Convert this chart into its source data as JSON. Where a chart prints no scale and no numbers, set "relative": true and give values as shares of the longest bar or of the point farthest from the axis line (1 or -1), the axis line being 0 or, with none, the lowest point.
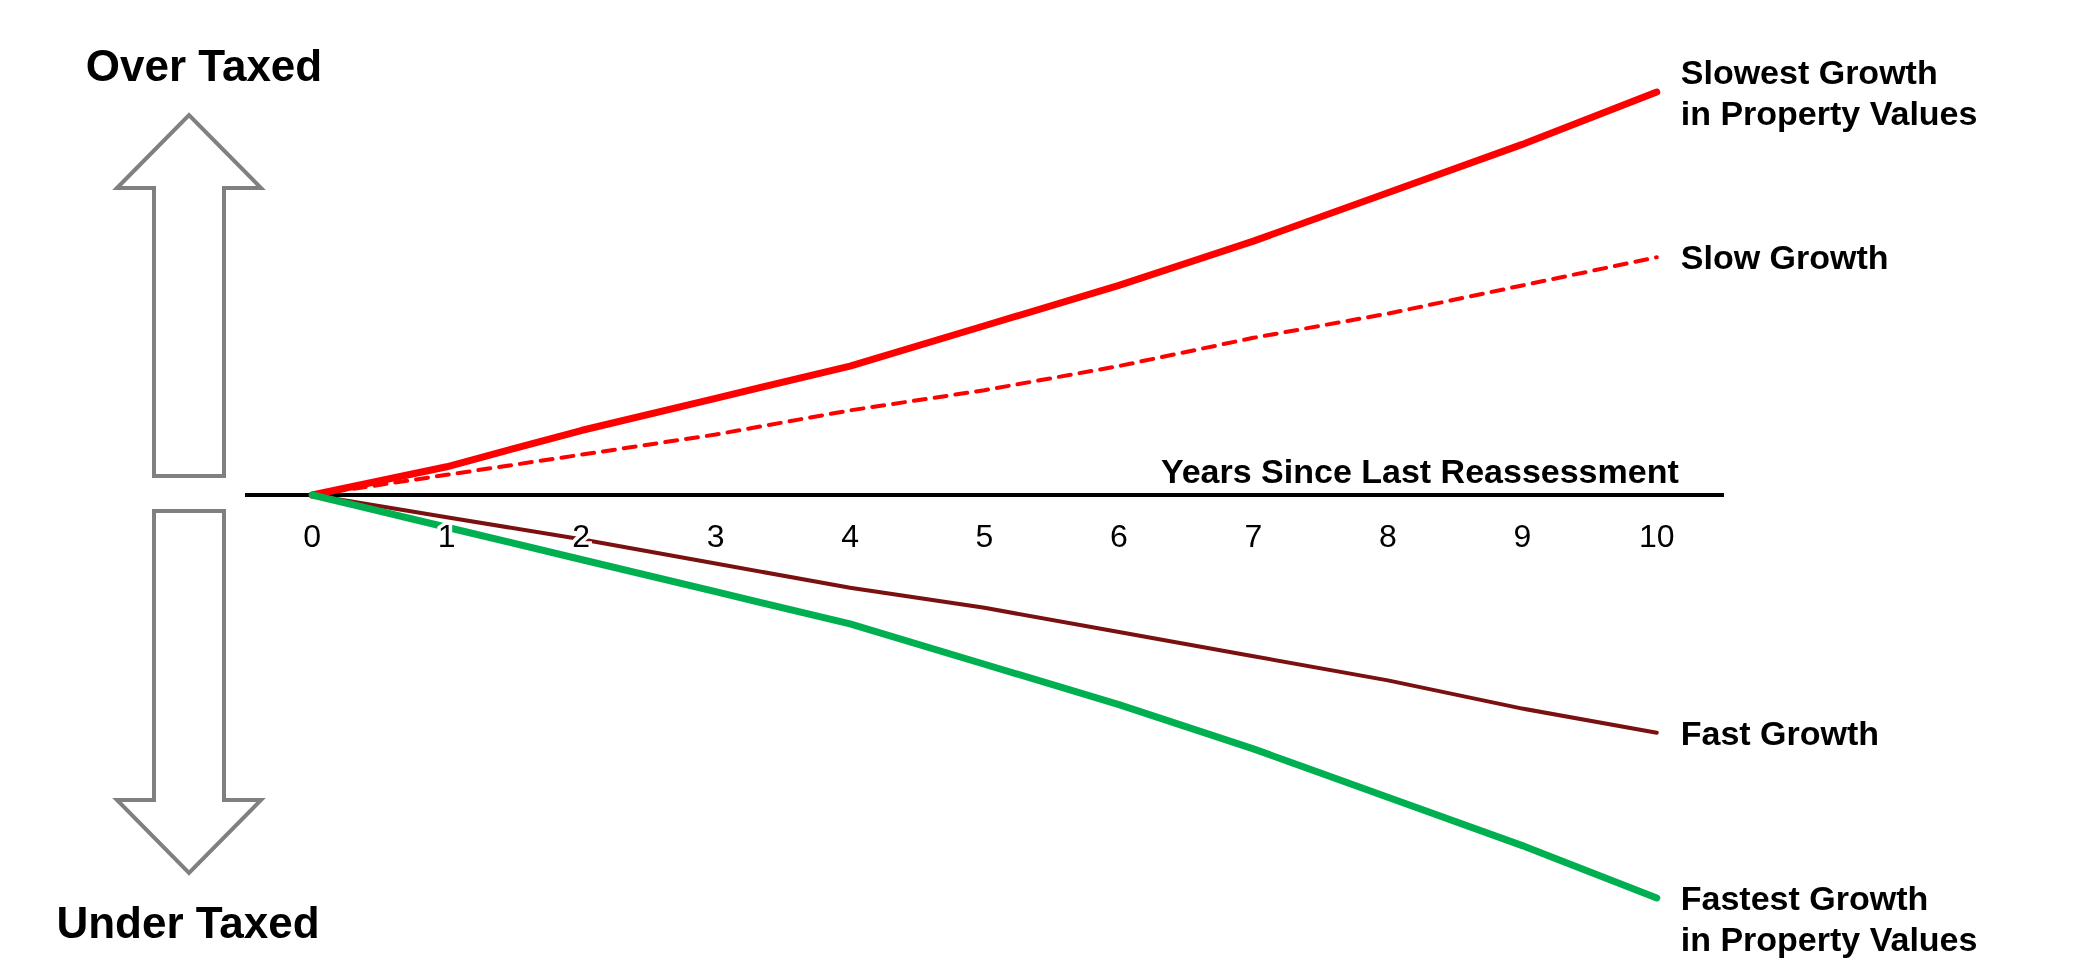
{
  "chart_data": {
    "type": "line",
    "relative": true,
    "xlabel": "Years Since Last Reassessment",
    "x": [
      0,
      1,
      2,
      3,
      4,
      5,
      6,
      7,
      8,
      9,
      10
    ],
    "xlim": [
      -0.5,
      10.5
    ],
    "xticks": [
      0,
      1,
      2,
      3,
      4,
      5,
      6,
      7,
      8,
      9,
      10
    ],
    "tick_labels": "x",
    "grid": false,
    "marker": "none",
    "annotations": [
      "Over Taxed",
      "Under Taxed"
    ],
    "series": [
      {
        "name": "Slowest Growth in Property Values",
        "color": "#ff0000",
        "line_style": "solid",
        "values": [
          0,
          0.07,
          0.16,
          0.24,
          0.32,
          0.42,
          0.52,
          0.63,
          0.75,
          0.87,
          1.0
        ]
      },
      {
        "name": "Slow Growth",
        "color": "#ff0000",
        "line_style": "dashed",
        "values": [
          0,
          0.05,
          0.1,
          0.15,
          0.21,
          0.26,
          0.32,
          0.39,
          0.45,
          0.52,
          0.59
        ]
      },
      {
        "name": "Fast Growth",
        "color": "#7b1010",
        "line_style": "solid",
        "values": [
          0,
          -0.055,
          -0.11,
          -0.17,
          -0.23,
          -0.28,
          -0.34,
          -0.4,
          -0.46,
          -0.53,
          -0.59
        ]
      },
      {
        "name": "Fastest Growth in Property Values",
        "color": "#00b050",
        "line_style": "solid",
        "values": [
          0,
          -0.08,
          -0.16,
          -0.24,
          -0.32,
          -0.42,
          -0.52,
          -0.63,
          -0.75,
          -0.87,
          -1.0
        ]
      }
    ]
  }
}
